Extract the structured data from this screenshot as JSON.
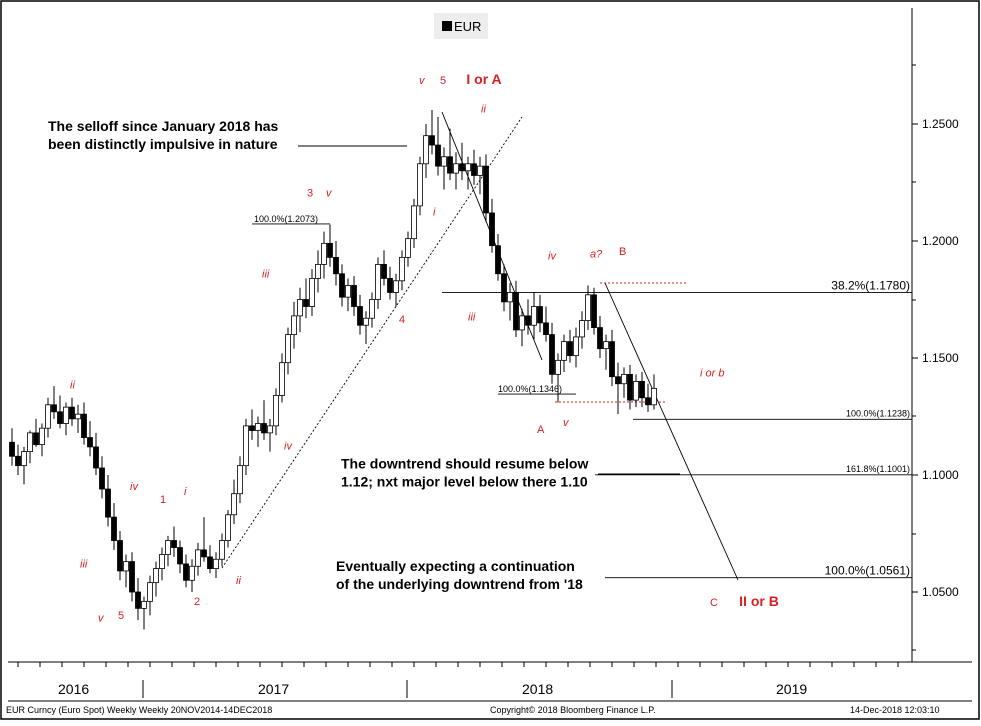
{
  "chart_data": {
    "type": "candlestick",
    "legend": "EUR",
    "y_axis": {
      "range": [
        1.03,
        1.27
      ],
      "ticks": [
        "1.2500",
        "1.2000",
        "1.1500",
        "1.1000",
        "1.0500"
      ],
      "position": "right"
    },
    "x_axis": {
      "period_labels": [
        "2016",
        "2017",
        "2018",
        "2019"
      ]
    },
    "candles": [
      {
        "o": 1.114,
        "h": 1.12,
        "l": 1.104,
        "c": 1.108
      },
      {
        "o": 1.108,
        "h": 1.113,
        "l": 1.1,
        "c": 1.104
      },
      {
        "o": 1.104,
        "h": 1.112,
        "l": 1.096,
        "c": 1.11
      },
      {
        "o": 1.11,
        "h": 1.119,
        "l": 1.105,
        "c": 1.118
      },
      {
        "o": 1.118,
        "h": 1.124,
        "l": 1.112,
        "c": 1.113
      },
      {
        "o": 1.113,
        "h": 1.122,
        "l": 1.108,
        "c": 1.12
      },
      {
        "o": 1.12,
        "h": 1.133,
        "l": 1.116,
        "c": 1.13
      },
      {
        "o": 1.13,
        "h": 1.138,
        "l": 1.124,
        "c": 1.127
      },
      {
        "o": 1.127,
        "h": 1.134,
        "l": 1.12,
        "c": 1.122
      },
      {
        "o": 1.122,
        "h": 1.131,
        "l": 1.117,
        "c": 1.129
      },
      {
        "o": 1.129,
        "h": 1.133,
        "l": 1.121,
        "c": 1.124
      },
      {
        "o": 1.124,
        "h": 1.13,
        "l": 1.118,
        "c": 1.126
      },
      {
        "o": 1.126,
        "h": 1.131,
        "l": 1.113,
        "c": 1.116
      },
      {
        "o": 1.116,
        "h": 1.123,
        "l": 1.108,
        "c": 1.112
      },
      {
        "o": 1.112,
        "h": 1.118,
        "l": 1.1,
        "c": 1.103
      },
      {
        "o": 1.103,
        "h": 1.108,
        "l": 1.09,
        "c": 1.094
      },
      {
        "o": 1.094,
        "h": 1.1,
        "l": 1.078,
        "c": 1.082
      },
      {
        "o": 1.082,
        "h": 1.088,
        "l": 1.068,
        "c": 1.072
      },
      {
        "o": 1.072,
        "h": 1.076,
        "l": 1.055,
        "c": 1.059
      },
      {
        "o": 1.059,
        "h": 1.066,
        "l": 1.052,
        "c": 1.063
      },
      {
        "o": 1.063,
        "h": 1.067,
        "l": 1.046,
        "c": 1.05
      },
      {
        "o": 1.05,
        "h": 1.056,
        "l": 1.038,
        "c": 1.043
      },
      {
        "o": 1.043,
        "h": 1.048,
        "l": 1.034,
        "c": 1.046
      },
      {
        "o": 1.046,
        "h": 1.057,
        "l": 1.04,
        "c": 1.054
      },
      {
        "o": 1.054,
        "h": 1.063,
        "l": 1.048,
        "c": 1.06
      },
      {
        "o": 1.06,
        "h": 1.069,
        "l": 1.055,
        "c": 1.066
      },
      {
        "o": 1.066,
        "h": 1.074,
        "l": 1.061,
        "c": 1.072
      },
      {
        "o": 1.072,
        "h": 1.078,
        "l": 1.065,
        "c": 1.069
      },
      {
        "o": 1.069,
        "h": 1.072,
        "l": 1.058,
        "c": 1.062
      },
      {
        "o": 1.062,
        "h": 1.066,
        "l": 1.052,
        "c": 1.055
      },
      {
        "o": 1.055,
        "h": 1.064,
        "l": 1.05,
        "c": 1.061
      },
      {
        "o": 1.061,
        "h": 1.071,
        "l": 1.057,
        "c": 1.068
      },
      {
        "o": 1.068,
        "h": 1.082,
        "l": 1.063,
        "c": 1.065
      },
      {
        "o": 1.065,
        "h": 1.07,
        "l": 1.058,
        "c": 1.06
      },
      {
        "o": 1.06,
        "h": 1.067,
        "l": 1.056,
        "c": 1.064
      },
      {
        "o": 1.064,
        "h": 1.075,
        "l": 1.061,
        "c": 1.072
      },
      {
        "o": 1.072,
        "h": 1.085,
        "l": 1.069,
        "c": 1.083
      },
      {
        "o": 1.083,
        "h": 1.098,
        "l": 1.079,
        "c": 1.092
      },
      {
        "o": 1.092,
        "h": 1.108,
        "l": 1.088,
        "c": 1.104
      },
      {
        "o": 1.104,
        "h": 1.124,
        "l": 1.1,
        "c": 1.121
      },
      {
        "o": 1.121,
        "h": 1.128,
        "l": 1.115,
        "c": 1.119
      },
      {
        "o": 1.119,
        "h": 1.125,
        "l": 1.112,
        "c": 1.122
      },
      {
        "o": 1.122,
        "h": 1.132,
        "l": 1.115,
        "c": 1.118
      },
      {
        "o": 1.118,
        "h": 1.124,
        "l": 1.11,
        "c": 1.121
      },
      {
        "o": 1.121,
        "h": 1.137,
        "l": 1.117,
        "c": 1.134
      },
      {
        "o": 1.134,
        "h": 1.152,
        "l": 1.131,
        "c": 1.148
      },
      {
        "o": 1.148,
        "h": 1.163,
        "l": 1.143,
        "c": 1.16
      },
      {
        "o": 1.16,
        "h": 1.174,
        "l": 1.154,
        "c": 1.168
      },
      {
        "o": 1.168,
        "h": 1.18,
        "l": 1.161,
        "c": 1.175
      },
      {
        "o": 1.175,
        "h": 1.184,
        "l": 1.167,
        "c": 1.172
      },
      {
        "o": 1.172,
        "h": 1.188,
        "l": 1.168,
        "c": 1.184
      },
      {
        "o": 1.184,
        "h": 1.196,
        "l": 1.178,
        "c": 1.19
      },
      {
        "o": 1.19,
        "h": 1.204,
        "l": 1.184,
        "c": 1.199
      },
      {
        "o": 1.199,
        "h": 1.207,
        "l": 1.189,
        "c": 1.193
      },
      {
        "o": 1.193,
        "h": 1.2,
        "l": 1.181,
        "c": 1.186
      },
      {
        "o": 1.186,
        "h": 1.19,
        "l": 1.172,
        "c": 1.176
      },
      {
        "o": 1.176,
        "h": 1.184,
        "l": 1.17,
        "c": 1.181
      },
      {
        "o": 1.181,
        "h": 1.185,
        "l": 1.168,
        "c": 1.172
      },
      {
        "o": 1.172,
        "h": 1.177,
        "l": 1.16,
        "c": 1.164
      },
      {
        "o": 1.164,
        "h": 1.17,
        "l": 1.156,
        "c": 1.167
      },
      {
        "o": 1.167,
        "h": 1.178,
        "l": 1.163,
        "c": 1.175
      },
      {
        "o": 1.175,
        "h": 1.193,
        "l": 1.171,
        "c": 1.19
      },
      {
        "o": 1.19,
        "h": 1.196,
        "l": 1.181,
        "c": 1.184
      },
      {
        "o": 1.184,
        "h": 1.189,
        "l": 1.175,
        "c": 1.178
      },
      {
        "o": 1.178,
        "h": 1.186,
        "l": 1.172,
        "c": 1.183
      },
      {
        "o": 1.183,
        "h": 1.196,
        "l": 1.179,
        "c": 1.193
      },
      {
        "o": 1.193,
        "h": 1.204,
        "l": 1.189,
        "c": 1.201
      },
      {
        "o": 1.201,
        "h": 1.218,
        "l": 1.197,
        "c": 1.215
      },
      {
        "o": 1.215,
        "h": 1.236,
        "l": 1.211,
        "c": 1.233
      },
      {
        "o": 1.233,
        "h": 1.25,
        "l": 1.227,
        "c": 1.245
      },
      {
        "o": 1.245,
        "h": 1.256,
        "l": 1.237,
        "c": 1.241
      },
      {
        "o": 1.241,
        "h": 1.253,
        "l": 1.228,
        "c": 1.232
      },
      {
        "o": 1.232,
        "h": 1.24,
        "l": 1.222,
        "c": 1.236
      },
      {
        "o": 1.236,
        "h": 1.248,
        "l": 1.226,
        "c": 1.229
      },
      {
        "o": 1.229,
        "h": 1.238,
        "l": 1.222,
        "c": 1.233
      },
      {
        "o": 1.233,
        "h": 1.242,
        "l": 1.226,
        "c": 1.23
      },
      {
        "o": 1.23,
        "h": 1.236,
        "l": 1.222,
        "c": 1.233
      },
      {
        "o": 1.233,
        "h": 1.239,
        "l": 1.224,
        "c": 1.228
      },
      {
        "o": 1.228,
        "h": 1.236,
        "l": 1.22,
        "c": 1.232
      },
      {
        "o": 1.232,
        "h": 1.237,
        "l": 1.208,
        "c": 1.212
      },
      {
        "o": 1.212,
        "h": 1.218,
        "l": 1.195,
        "c": 1.198
      },
      {
        "o": 1.198,
        "h": 1.203,
        "l": 1.183,
        "c": 1.186
      },
      {
        "o": 1.186,
        "h": 1.19,
        "l": 1.17,
        "c": 1.174
      },
      {
        "o": 1.174,
        "h": 1.182,
        "l": 1.166,
        "c": 1.178
      },
      {
        "o": 1.178,
        "h": 1.183,
        "l": 1.159,
        "c": 1.162
      },
      {
        "o": 1.162,
        "h": 1.171,
        "l": 1.155,
        "c": 1.168
      },
      {
        "o": 1.168,
        "h": 1.175,
        "l": 1.16,
        "c": 1.164
      },
      {
        "o": 1.164,
        "h": 1.178,
        "l": 1.158,
        "c": 1.172
      },
      {
        "o": 1.172,
        "h": 1.177,
        "l": 1.161,
        "c": 1.165
      },
      {
        "o": 1.165,
        "h": 1.172,
        "l": 1.157,
        "c": 1.16
      },
      {
        "o": 1.16,
        "h": 1.165,
        "l": 1.139,
        "c": 1.143
      },
      {
        "o": 1.143,
        "h": 1.152,
        "l": 1.131,
        "c": 1.149
      },
      {
        "o": 1.149,
        "h": 1.16,
        "l": 1.144,
        "c": 1.157
      },
      {
        "o": 1.157,
        "h": 1.162,
        "l": 1.148,
        "c": 1.151
      },
      {
        "o": 1.151,
        "h": 1.163,
        "l": 1.146,
        "c": 1.159
      },
      {
        "o": 1.159,
        "h": 1.17,
        "l": 1.154,
        "c": 1.166
      },
      {
        "o": 1.166,
        "h": 1.181,
        "l": 1.162,
        "c": 1.177
      },
      {
        "o": 1.177,
        "h": 1.18,
        "l": 1.16,
        "c": 1.163
      },
      {
        "o": 1.163,
        "h": 1.168,
        "l": 1.15,
        "c": 1.154
      },
      {
        "o": 1.154,
        "h": 1.16,
        "l": 1.145,
        "c": 1.157
      },
      {
        "o": 1.157,
        "h": 1.162,
        "l": 1.138,
        "c": 1.142
      },
      {
        "o": 1.142,
        "h": 1.148,
        "l": 1.126,
        "c": 1.139
      },
      {
        "o": 1.139,
        "h": 1.146,
        "l": 1.133,
        "c": 1.143
      },
      {
        "o": 1.143,
        "h": 1.147,
        "l": 1.128,
        "c": 1.132
      },
      {
        "o": 1.132,
        "h": 1.143,
        "l": 1.129,
        "c": 1.14
      },
      {
        "o": 1.14,
        "h": 1.144,
        "l": 1.129,
        "c": 1.133
      },
      {
        "o": 1.133,
        "h": 1.139,
        "l": 1.127,
        "c": 1.13
      },
      {
        "o": 1.13,
        "h": 1.143,
        "l": 1.128,
        "c": 1.137
      }
    ],
    "wave_labels": [
      {
        "text": "ii",
        "italic": true,
        "x": 70,
        "y": 1.137
      },
      {
        "text": "iv",
        "italic": true,
        "x": 130,
        "y": 1.0935
      },
      {
        "text": "1",
        "italic": false,
        "x": 160,
        "y": 1.088
      },
      {
        "text": "i",
        "italic": true,
        "x": 184,
        "y": 1.0915
      },
      {
        "text": "iii",
        "italic": true,
        "x": 80,
        "y": 1.0605
      },
      {
        "text": "2",
        "italic": false,
        "x": 194,
        "y": 1.0445
      },
      {
        "text": "ii",
        "italic": true,
        "x": 236,
        "y": 1.0535
      },
      {
        "text": "v",
        "italic": true,
        "x": 98,
        "y": 1.0375
      },
      {
        "text": "5",
        "italic": false,
        "x": 118,
        "y": 1.0385
      },
      {
        "text": "iv",
        "italic": true,
        "x": 284,
        "y": 1.111
      },
      {
        "text": "iii",
        "italic": true,
        "x": 262,
        "y": 1.1845
      },
      {
        "text": "3",
        "italic": false,
        "x": 307,
        "y": 1.219
      },
      {
        "text": "v",
        "italic": true,
        "x": 326,
        "y": 1.219
      },
      {
        "text": "4",
        "italic": false,
        "x": 399,
        "y": 1.165
      },
      {
        "text": "i",
        "italic": true,
        "x": 433,
        "y": 1.211
      },
      {
        "text": "ii",
        "italic": true,
        "x": 481,
        "y": 1.255
      },
      {
        "text": "v",
        "italic": true,
        "x": 419,
        "y": 1.267
      },
      {
        "text": "5",
        "italic": false,
        "x": 440,
        "y": 1.267
      },
      {
        "text": "iii",
        "italic": true,
        "x": 468,
        "y": 1.166
      },
      {
        "text": "iv",
        "italic": true,
        "x": 548,
        "y": 1.192
      },
      {
        "text": "a?",
        "italic": true,
        "x": 590,
        "y": 1.193
      },
      {
        "text": "B",
        "italic": false,
        "x": 619,
        "y": 1.194
      },
      {
        "text": "A",
        "italic": false,
        "x": 537,
        "y": 1.118
      },
      {
        "text": "v",
        "italic": true,
        "x": 563,
        "y": 1.121
      },
      {
        "text": "i or b",
        "italic": true,
        "x": 700,
        "y": 1.142
      },
      {
        "text": "C",
        "italic": false,
        "x": 710,
        "y": 1.044
      }
    ],
    "big_labels": [
      {
        "text": "I or A",
        "x": 484,
        "y": 1.267
      },
      {
        "text": "II or B",
        "x": 759,
        "y": 1.044
      }
    ],
    "annotations": [
      {
        "lines": [
          "The selloff since January 2018 has",
          "been distinctly impulsive in nature"
        ],
        "x": 48,
        "y": 1.247
      },
      {
        "lines": [
          "The downtrend should resume below",
          "1.12; nxt major level below there 1.10"
        ],
        "x": 341,
        "y": 1.1028
      },
      {
        "lines": [
          "Eventually  expecting  a continuation",
          "of the underlying downtrend from '18"
        ],
        "x": 336,
        "y": 1.059
      }
    ],
    "fib_levels": [
      {
        "label": "38.2%(1.1780)",
        "value": 1.178,
        "x1": 442,
        "x2": 912
      },
      {
        "label": "100.0%(1.1238)",
        "value": 1.1238,
        "x1": 633,
        "x2": 912
      },
      {
        "label": "161.8%(1.1001)",
        "value": 1.1001,
        "x1": 595,
        "x2": 912
      },
      {
        "label": "100.0%(1.0561)",
        "value": 1.0561,
        "x1": 605,
        "x2": 912
      }
    ],
    "fib_markers": [
      {
        "label": "100.0%(1.2073)",
        "value": 1.2073
      },
      {
        "label": "100.0%(1.1346)",
        "value": 1.1346
      }
    ]
  },
  "footer": {
    "left": "EUR Curncy (Euro Spot) Weekly  Weekly 20NOV2014-14DEC2018",
    "center": "Copyright© 2018 Bloomberg Finance L.P.",
    "right": "14-Dec-2018 12:03:10"
  },
  "colors": {
    "bull_fill": "#ffffff",
    "bear_fill": "#000000",
    "wave": "#d62222",
    "grid_line": "#000000"
  }
}
